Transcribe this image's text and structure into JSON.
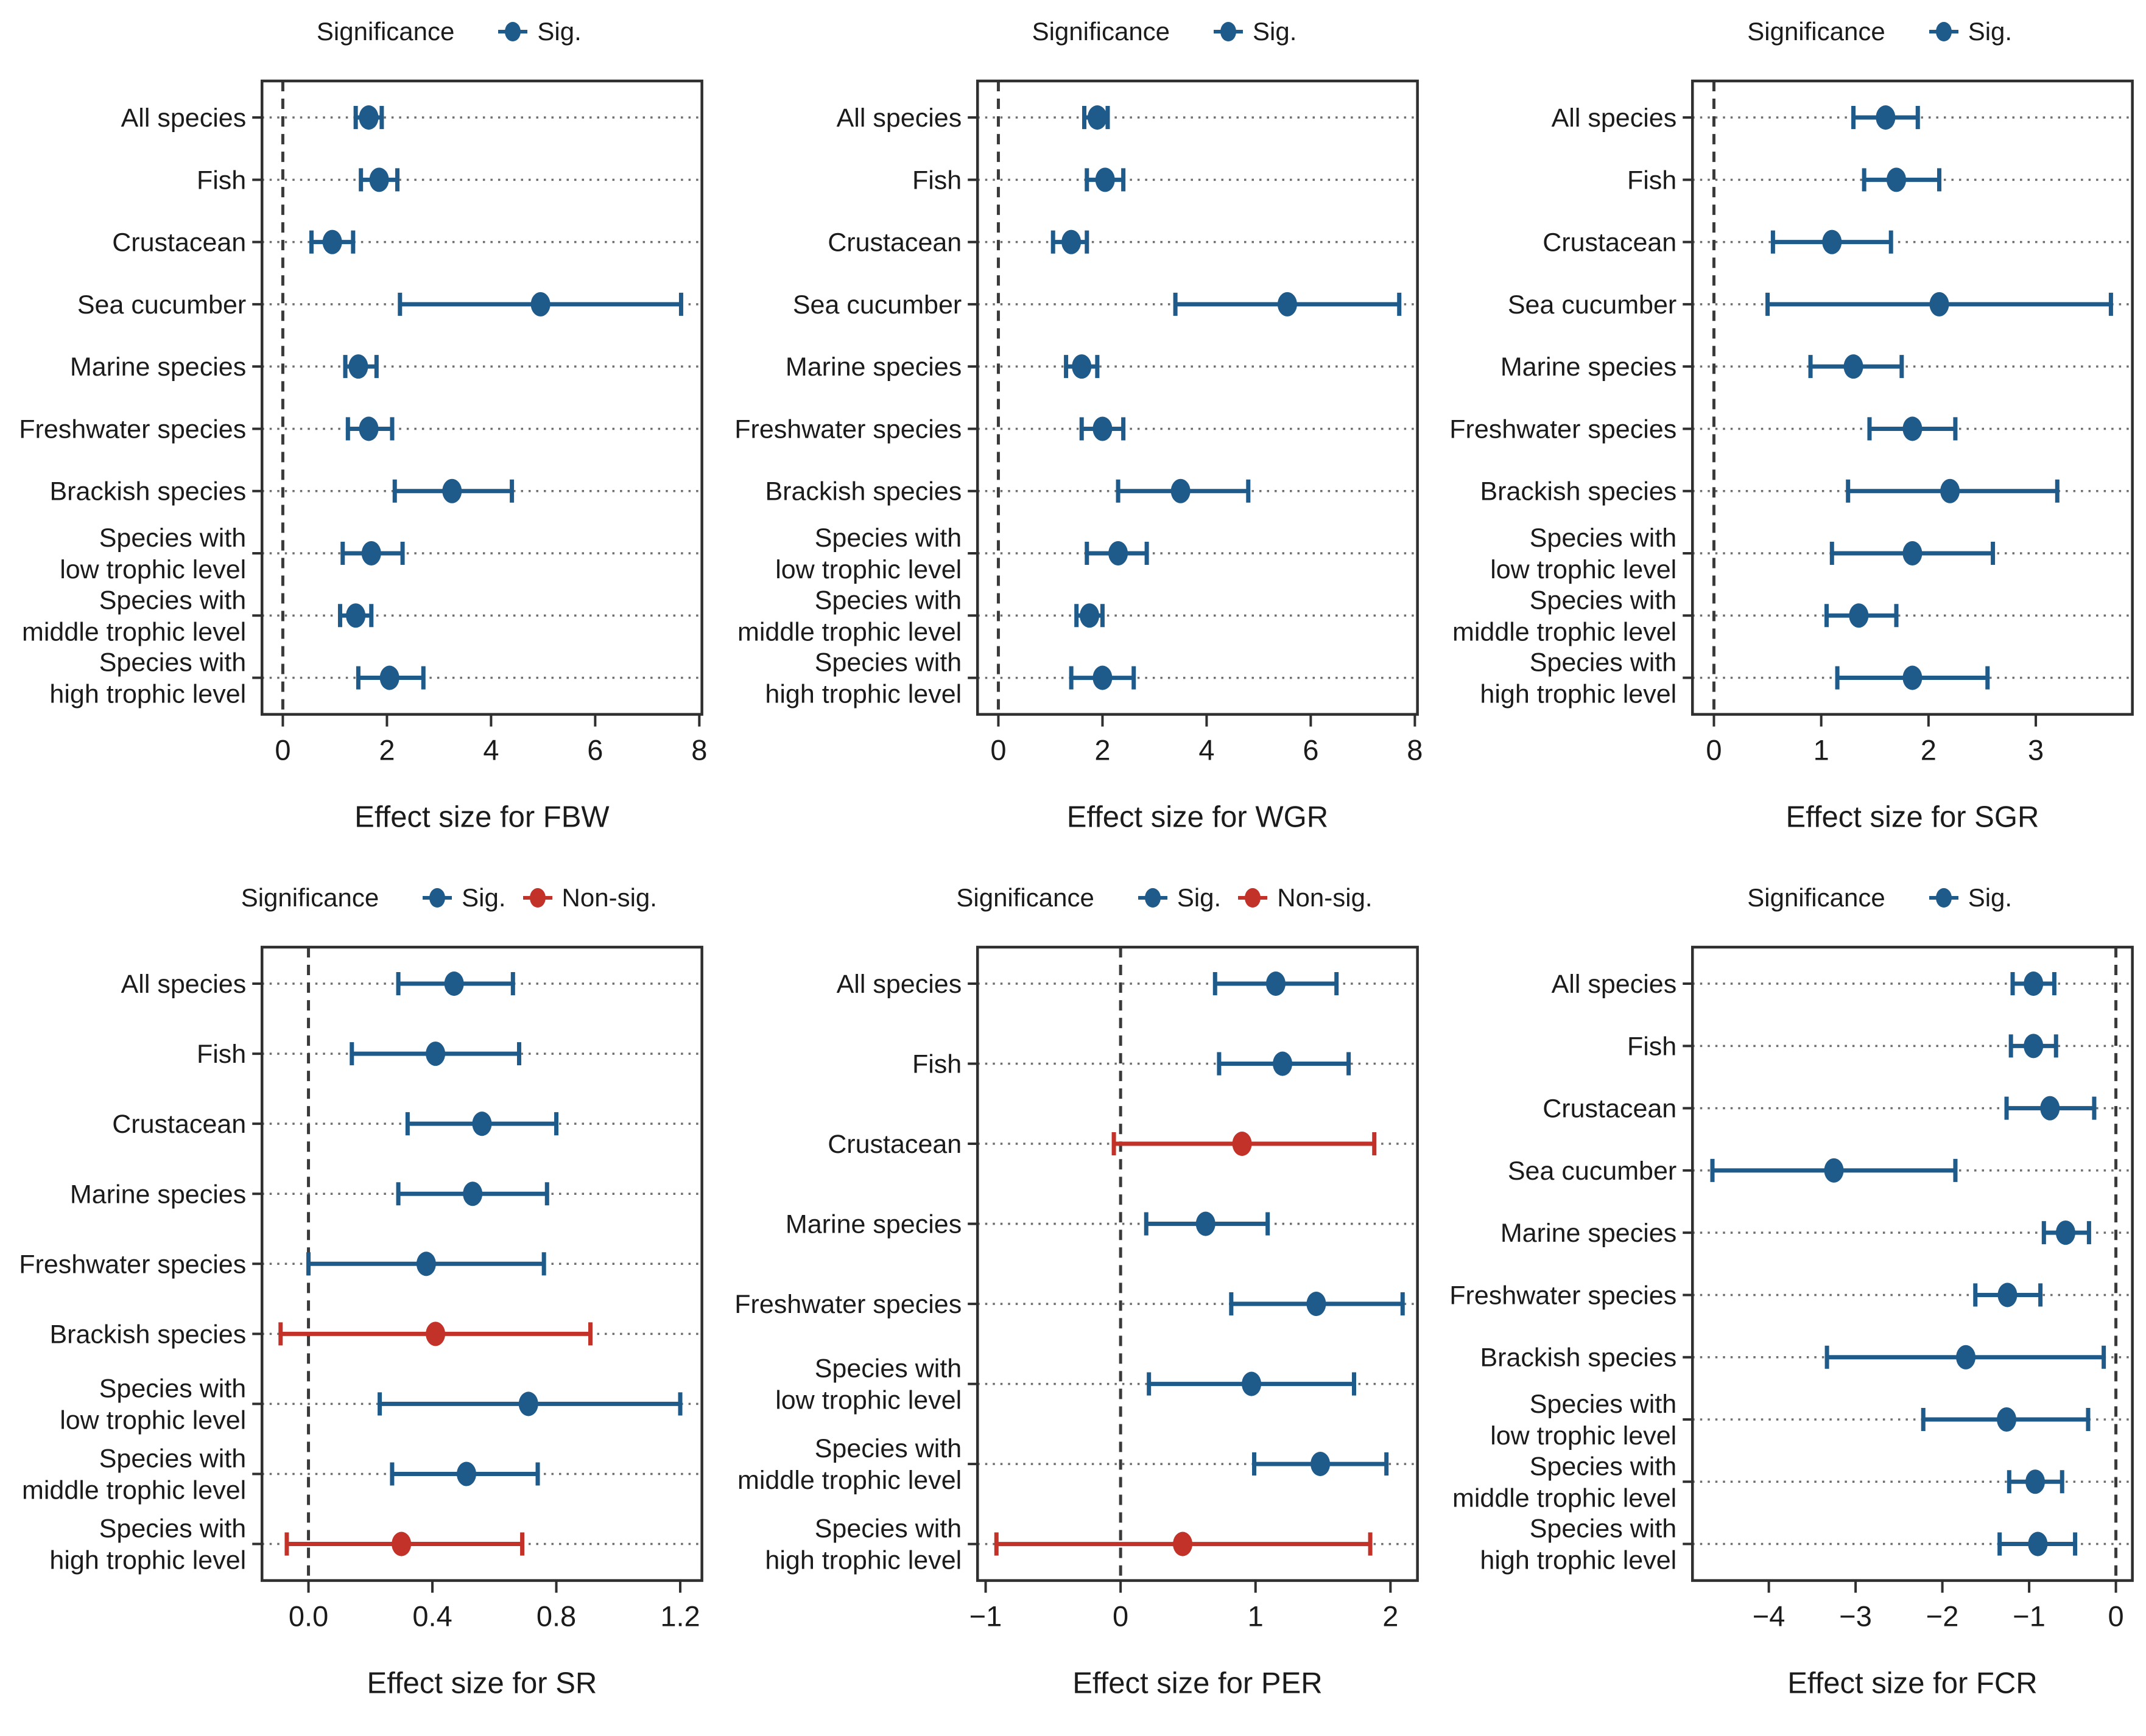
{
  "colors": {
    "sig": "#1e5a8a",
    "nonsig": "#c23228",
    "leader_dots": "#6e6e6e",
    "zero_line": "#3a3a3a",
    "frame": "#2f2f2f",
    "text": "#1b1b1b"
  },
  "legend": {
    "title": "Significance",
    "sig_label": "Sig.",
    "nonsig_label": "Non-sig."
  },
  "chart_data": [
    {
      "id": "FBW",
      "type": "scatter",
      "title": "",
      "xlabel": "Effect size for FBW",
      "legend_title": "Significance",
      "legend": [
        "Sig."
      ],
      "legend_position": "top",
      "grid": "dotted-horizontal-leaders",
      "zero_line": 0,
      "xlim": [
        -0.4,
        8.05
      ],
      "xticks": [
        0,
        2,
        4,
        6,
        8
      ],
      "xtick_labels": [
        "0",
        "2",
        "4",
        "6",
        "8"
      ],
      "points": [
        {
          "category": "All species",
          "value": 1.65,
          "ci": [
            1.4,
            1.9
          ],
          "significance": "Sig."
        },
        {
          "category": "Fish",
          "value": 1.85,
          "ci": [
            1.5,
            2.2
          ],
          "significance": "Sig."
        },
        {
          "category": "Crustacean",
          "value": 0.95,
          "ci": [
            0.55,
            1.35
          ],
          "significance": "Sig."
        },
        {
          "category": "Sea cucumber",
          "value": 4.95,
          "ci": [
            2.25,
            7.65
          ],
          "significance": "Sig."
        },
        {
          "category": "Marine species",
          "value": 1.45,
          "ci": [
            1.2,
            1.8
          ],
          "significance": "Sig."
        },
        {
          "category": "Freshwater species",
          "value": 1.65,
          "ci": [
            1.25,
            2.1
          ],
          "significance": "Sig."
        },
        {
          "category": "Brackish species",
          "value": 3.25,
          "ci": [
            2.15,
            4.4
          ],
          "significance": "Sig."
        },
        {
          "category": "Species with\nlow trophic level",
          "value": 1.7,
          "ci": [
            1.15,
            2.3
          ],
          "significance": "Sig."
        },
        {
          "category": "Species with\nmiddle trophic level",
          "value": 1.4,
          "ci": [
            1.1,
            1.7
          ],
          "significance": "Sig."
        },
        {
          "category": "Species with\nhigh trophic level",
          "value": 2.05,
          "ci": [
            1.45,
            2.7
          ],
          "significance": "Sig."
        }
      ]
    },
    {
      "id": "WGR",
      "type": "scatter",
      "title": "",
      "xlabel": "Effect size for WGR",
      "legend_title": "Significance",
      "legend": [
        "Sig."
      ],
      "legend_position": "top",
      "grid": "dotted-horizontal-leaders",
      "zero_line": 0,
      "xlim": [
        -0.4,
        8.05
      ],
      "xticks": [
        0,
        2,
        4,
        6,
        8
      ],
      "xtick_labels": [
        "0",
        "2",
        "4",
        "6",
        "8"
      ],
      "points": [
        {
          "category": "All species",
          "value": 1.9,
          "ci": [
            1.65,
            2.1
          ],
          "significance": "Sig."
        },
        {
          "category": "Fish",
          "value": 2.05,
          "ci": [
            1.7,
            2.4
          ],
          "significance": "Sig."
        },
        {
          "category": "Crustacean",
          "value": 1.4,
          "ci": [
            1.05,
            1.7
          ],
          "significance": "Sig."
        },
        {
          "category": "Sea cucumber",
          "value": 5.55,
          "ci": [
            3.4,
            7.7
          ],
          "significance": "Sig."
        },
        {
          "category": "Marine species",
          "value": 1.6,
          "ci": [
            1.3,
            1.9
          ],
          "significance": "Sig."
        },
        {
          "category": "Freshwater species",
          "value": 2.0,
          "ci": [
            1.6,
            2.4
          ],
          "significance": "Sig."
        },
        {
          "category": "Brackish species",
          "value": 3.5,
          "ci": [
            2.3,
            4.8
          ],
          "significance": "Sig."
        },
        {
          "category": "Species with\nlow trophic level",
          "value": 2.3,
          "ci": [
            1.7,
            2.85
          ],
          "significance": "Sig."
        },
        {
          "category": "Species with\nmiddle trophic level",
          "value": 1.75,
          "ci": [
            1.5,
            2.0
          ],
          "significance": "Sig."
        },
        {
          "category": "Species with\nhigh trophic level",
          "value": 2.0,
          "ci": [
            1.4,
            2.6
          ],
          "significance": "Sig."
        }
      ]
    },
    {
      "id": "SGR",
      "type": "scatter",
      "title": "",
      "xlabel": "Effect size for SGR",
      "legend_title": "Significance",
      "legend": [
        "Sig."
      ],
      "legend_position": "top",
      "grid": "dotted-horizontal-leaders",
      "zero_line": 0,
      "xlim": [
        -0.2,
        3.9
      ],
      "xticks": [
        0,
        1,
        2,
        3
      ],
      "xtick_labels": [
        "0",
        "1",
        "2",
        "3"
      ],
      "points": [
        {
          "category": "All species",
          "value": 1.6,
          "ci": [
            1.3,
            1.9
          ],
          "significance": "Sig."
        },
        {
          "category": "Fish",
          "value": 1.7,
          "ci": [
            1.4,
            2.1
          ],
          "significance": "Sig."
        },
        {
          "category": "Crustacean",
          "value": 1.1,
          "ci": [
            0.55,
            1.65
          ],
          "significance": "Sig."
        },
        {
          "category": "Sea cucumber",
          "value": 2.1,
          "ci": [
            0.5,
            3.7
          ],
          "significance": "Sig."
        },
        {
          "category": "Marine species",
          "value": 1.3,
          "ci": [
            0.9,
            1.75
          ],
          "significance": "Sig."
        },
        {
          "category": "Freshwater species",
          "value": 1.85,
          "ci": [
            1.45,
            2.25
          ],
          "significance": "Sig."
        },
        {
          "category": "Brackish species",
          "value": 2.2,
          "ci": [
            1.25,
            3.2
          ],
          "significance": "Sig."
        },
        {
          "category": "Species with\nlow trophic level",
          "value": 1.85,
          "ci": [
            1.1,
            2.6
          ],
          "significance": "Sig."
        },
        {
          "category": "Species with\nmiddle trophic level",
          "value": 1.35,
          "ci": [
            1.05,
            1.7
          ],
          "significance": "Sig."
        },
        {
          "category": "Species with\nhigh trophic level",
          "value": 1.85,
          "ci": [
            1.15,
            2.55
          ],
          "significance": "Sig."
        }
      ]
    },
    {
      "id": "SR",
      "type": "scatter",
      "title": "",
      "xlabel": "Effect size for SR",
      "legend_title": "Significance",
      "legend": [
        "Sig.",
        "Non-sig."
      ],
      "legend_position": "top",
      "grid": "dotted-horizontal-leaders",
      "zero_line": 0,
      "xlim": [
        -0.15,
        1.27
      ],
      "xticks": [
        0.0,
        0.4,
        0.8,
        1.2
      ],
      "xtick_labels": [
        "0.0",
        "0.4",
        "0.8",
        "1.2"
      ],
      "points": [
        {
          "category": "All species",
          "value": 0.47,
          "ci": [
            0.29,
            0.66
          ],
          "significance": "Sig."
        },
        {
          "category": "Fish",
          "value": 0.41,
          "ci": [
            0.14,
            0.68
          ],
          "significance": "Sig."
        },
        {
          "category": "Crustacean",
          "value": 0.56,
          "ci": [
            0.32,
            0.8
          ],
          "significance": "Sig."
        },
        {
          "category": "Marine species",
          "value": 0.53,
          "ci": [
            0.29,
            0.77
          ],
          "significance": "Sig."
        },
        {
          "category": "Freshwater species",
          "value": 0.38,
          "ci": [
            0.0,
            0.76
          ],
          "significance": "Sig."
        },
        {
          "category": "Brackish species",
          "value": 0.41,
          "ci": [
            -0.09,
            0.91
          ],
          "significance": "Non-sig."
        },
        {
          "category": "Species with\nlow trophic level",
          "value": 0.71,
          "ci": [
            0.23,
            1.2
          ],
          "significance": "Sig."
        },
        {
          "category": "Species with\nmiddle trophic level",
          "value": 0.51,
          "ci": [
            0.27,
            0.74
          ],
          "significance": "Sig."
        },
        {
          "category": "Species with\nhigh trophic level",
          "value": 0.3,
          "ci": [
            -0.07,
            0.69
          ],
          "significance": "Non-sig."
        }
      ]
    },
    {
      "id": "PER",
      "type": "scatter",
      "title": "",
      "xlabel": "Effect size for PER",
      "legend_title": "Significance",
      "legend": [
        "Sig.",
        "Non-sig."
      ],
      "legend_position": "top",
      "grid": "dotted-horizontal-leaders",
      "zero_line": 0,
      "xlim": [
        -1.06,
        2.2
      ],
      "xticks": [
        -1,
        0,
        1,
        2
      ],
      "xtick_labels": [
        "−1",
        "0",
        "1",
        "2"
      ],
      "points": [
        {
          "category": "All species",
          "value": 1.15,
          "ci": [
            0.7,
            1.6
          ],
          "significance": "Sig."
        },
        {
          "category": "Fish",
          "value": 1.2,
          "ci": [
            0.73,
            1.69
          ],
          "significance": "Sig."
        },
        {
          "category": "Crustacean",
          "value": 0.9,
          "ci": [
            -0.05,
            1.88
          ],
          "significance": "Non-sig."
        },
        {
          "category": "Marine species",
          "value": 0.63,
          "ci": [
            0.19,
            1.09
          ],
          "significance": "Sig."
        },
        {
          "category": "Freshwater species",
          "value": 1.45,
          "ci": [
            0.82,
            2.09
          ],
          "significance": "Sig."
        },
        {
          "category": "Species with\nlow trophic level",
          "value": 0.97,
          "ci": [
            0.21,
            1.73
          ],
          "significance": "Sig."
        },
        {
          "category": "Species with\nmiddle trophic level",
          "value": 1.48,
          "ci": [
            0.99,
            1.97
          ],
          "significance": "Sig."
        },
        {
          "category": "Species with\nhigh trophic level",
          "value": 0.46,
          "ci": [
            -0.92,
            1.85
          ],
          "significance": "Non-sig."
        }
      ]
    },
    {
      "id": "FCR",
      "type": "scatter",
      "title": "",
      "xlabel": "Effect size for FCR",
      "legend_title": "Significance",
      "legend": [
        "Sig."
      ],
      "legend_position": "top",
      "grid": "dotted-horizontal-leaders",
      "zero_line": 0,
      "xlim": [
        -4.88,
        0.19
      ],
      "xticks": [
        -4,
        -3,
        -2,
        -1,
        0
      ],
      "xtick_labels": [
        "−4",
        "−3",
        "−2",
        "−1",
        "0"
      ],
      "points": [
        {
          "category": "All species",
          "value": -0.95,
          "ci": [
            -1.19,
            -0.71
          ],
          "significance": "Sig."
        },
        {
          "category": "Fish",
          "value": -0.95,
          "ci": [
            -1.21,
            -0.69
          ],
          "significance": "Sig."
        },
        {
          "category": "Crustacean",
          "value": -0.76,
          "ci": [
            -1.26,
            -0.25
          ],
          "significance": "Sig."
        },
        {
          "category": "Sea cucumber",
          "value": -3.25,
          "ci": [
            -4.65,
            -1.85
          ],
          "significance": "Sig."
        },
        {
          "category": "Marine species",
          "value": -0.58,
          "ci": [
            -0.83,
            -0.31
          ],
          "significance": "Sig."
        },
        {
          "category": "Freshwater species",
          "value": -1.25,
          "ci": [
            -1.62,
            -0.87
          ],
          "significance": "Sig."
        },
        {
          "category": "Brackish species",
          "value": -1.73,
          "ci": [
            -3.33,
            -0.14
          ],
          "significance": "Sig."
        },
        {
          "category": "Species with\nlow trophic level",
          "value": -1.26,
          "ci": [
            -2.22,
            -0.32
          ],
          "significance": "Sig."
        },
        {
          "category": "Species with\nmiddle trophic level",
          "value": -0.93,
          "ci": [
            -1.23,
            -0.62
          ],
          "significance": "Sig."
        },
        {
          "category": "Species with\nhigh trophic level",
          "value": -0.9,
          "ci": [
            -1.34,
            -0.47
          ],
          "significance": "Sig."
        }
      ]
    }
  ]
}
